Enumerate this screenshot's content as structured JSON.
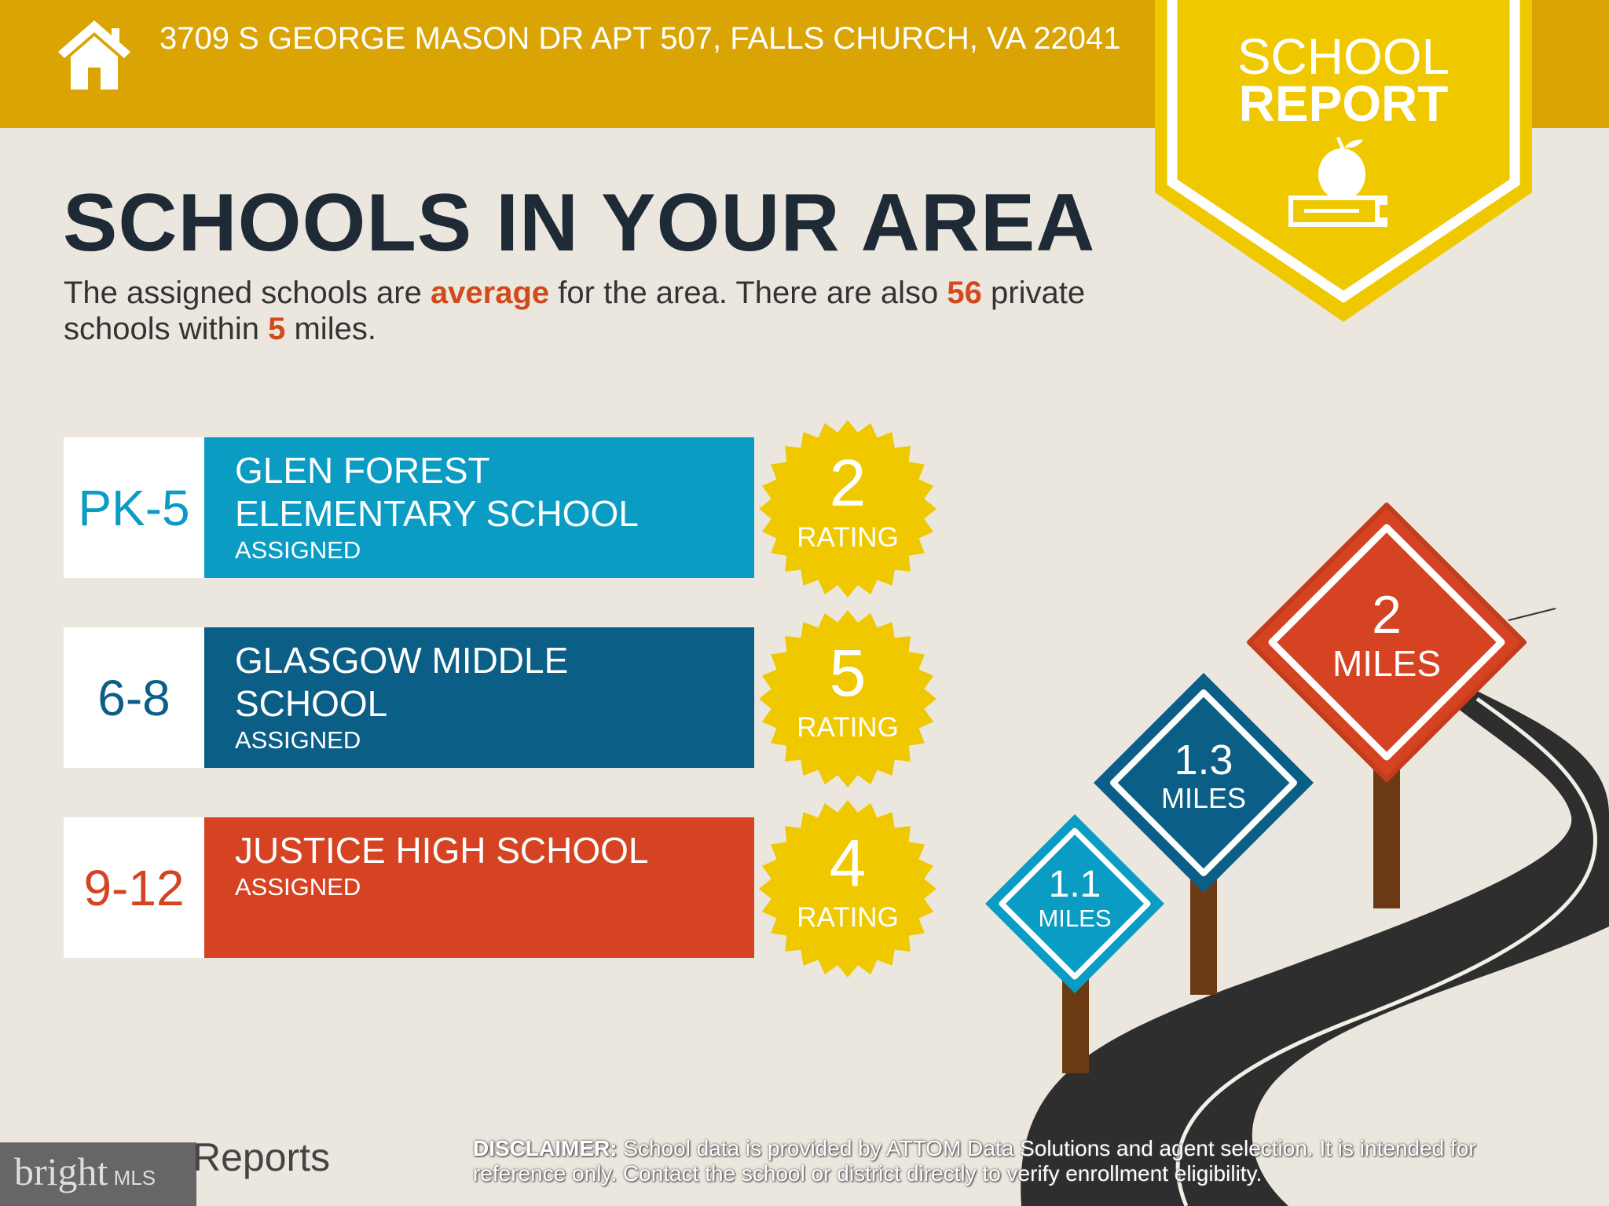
{
  "header": {
    "address": "3709 S GEORGE MASON DR APT 507, FALLS CHURCH, VA 22041",
    "icon": "home-icon"
  },
  "badge": {
    "line1": "SCHOOL",
    "line2": "REPORT",
    "icon": "apple-on-book-icon"
  },
  "title": "SCHOOLS IN YOUR AREA",
  "subtitle": {
    "p1": "The assigned schools are ",
    "quality": "average",
    "p2": " for the area. There are also ",
    "private_count": "56",
    "p3": " private schools within ",
    "radius": "5",
    "p4": " miles."
  },
  "schools": [
    {
      "grades": "PK-5",
      "name": "GLEN FOREST ELEMENTARY SCHOOL",
      "status": "ASSIGNED",
      "rating": "2",
      "rating_label": "RATING",
      "color": "#0b9cc4"
    },
    {
      "grades": "6-8",
      "name": "GLASGOW MIDDLE SCHOOL",
      "status": "ASSIGNED",
      "rating": "5",
      "rating_label": "RATING",
      "color": "#0b5f87"
    },
    {
      "grades": "9-12",
      "name": "JUSTICE HIGH SCHOOL",
      "status": "ASSIGNED",
      "rating": "4",
      "rating_label": "RATING",
      "color": "#d54322"
    }
  ],
  "distances": [
    {
      "value": "1.1",
      "unit": "MILES",
      "color": "#0b9cc4"
    },
    {
      "value": "1.3",
      "unit": "MILES",
      "color": "#0b5f87"
    },
    {
      "value": "2",
      "unit": "MILES",
      "color": "#d54322"
    }
  ],
  "footer": {
    "logo": "bright MLS",
    "reports": "Reports",
    "disclaimer_label": "DISCLAIMER:",
    "disclaimer": " School data is provided by ATTOM Data Solutions and agent selection. It is intended for reference only. Contact the school or district directly to verify enrollment eligibility."
  },
  "colors": {
    "header": "#d9a404",
    "badge": "#f0c800",
    "title": "#1e2a36",
    "highlight": "#d24a1c",
    "rating_star": "#f0c800"
  }
}
